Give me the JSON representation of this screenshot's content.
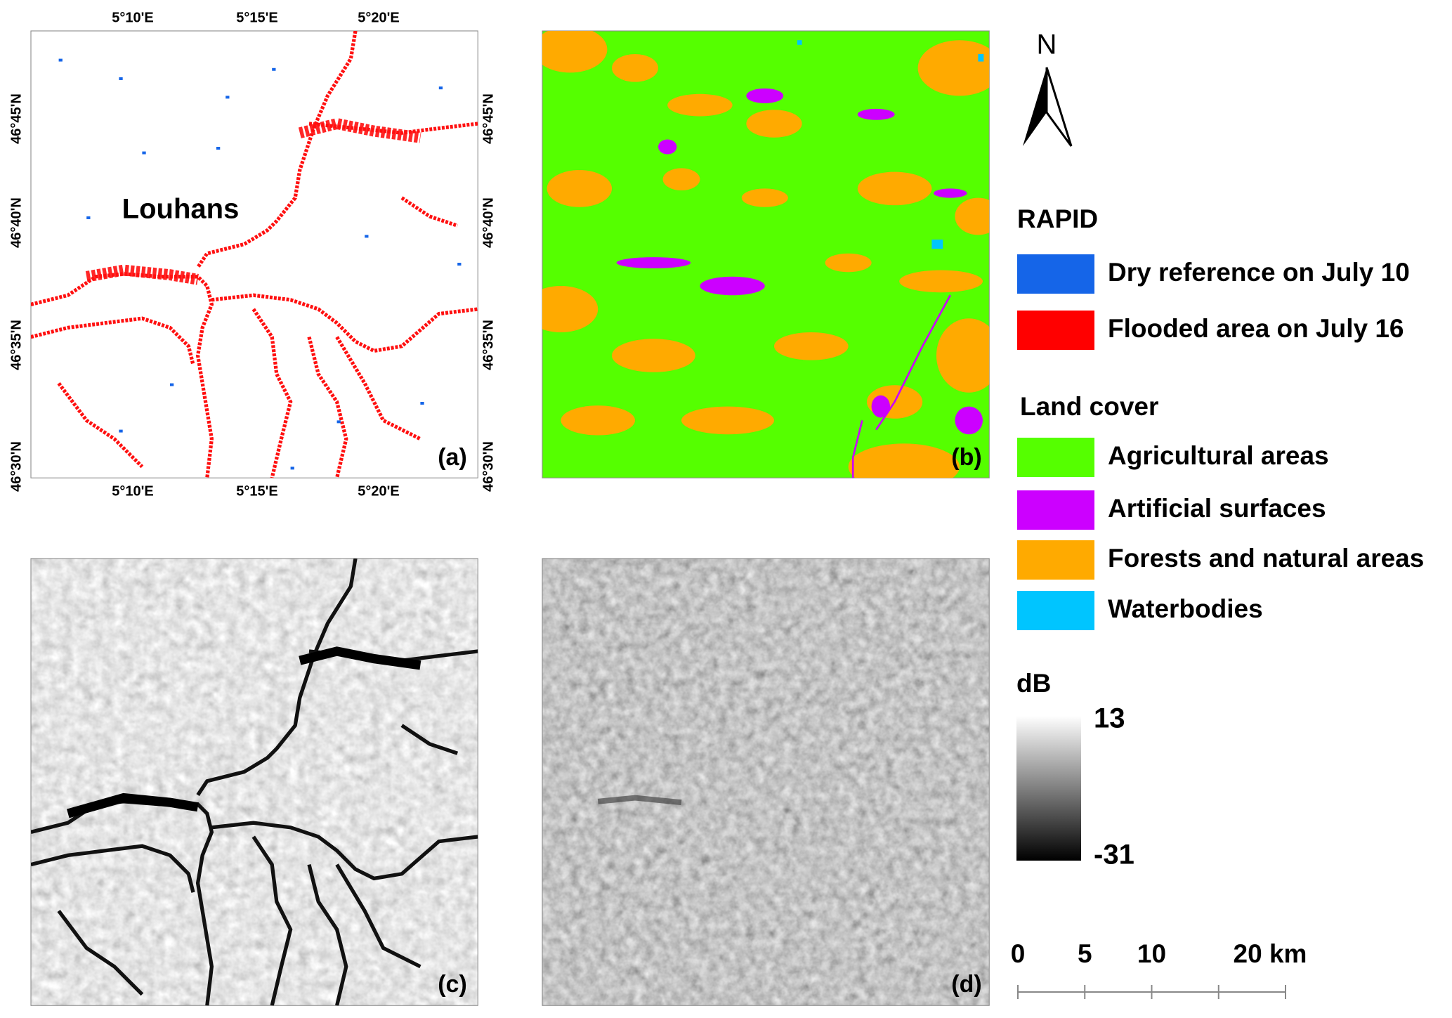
{
  "panels": [
    "(a)",
    "(b)",
    "(c)",
    "(d)"
  ],
  "map_a": {
    "place": "Louhans",
    "lon_ticks": [
      "5°10'E",
      "5°15'E",
      "5°20'E"
    ],
    "lat_ticks": [
      "46°45'N",
      "46°40'N",
      "46°35'N",
      "46°30'N"
    ]
  },
  "north": "N",
  "legend": [
    {
      "title": "RAPID",
      "items": [
        {
          "label": "Dry reference on July 10",
          "color": "#1565e8"
        },
        {
          "label": "Flooded area on July 16",
          "color": "#ff0000"
        }
      ]
    },
    {
      "title": "Land cover",
      "items": [
        {
          "label": "Agricultural areas",
          "color": "#55ff00"
        },
        {
          "label": "Artificial surfaces",
          "color": "#cc00ff"
        },
        {
          "label": "Forests and natural areas",
          "color": "#ffaa00"
        },
        {
          "label": "Waterbodies",
          "color": "#00c5ff"
        }
      ]
    }
  ],
  "colorbar": {
    "title": "dB",
    "max": 13,
    "min": -31
  },
  "scale_bar": {
    "ticks": [
      0,
      5,
      10,
      {
        "value": 20,
        "label": "20 km"
      }
    ]
  }
}
